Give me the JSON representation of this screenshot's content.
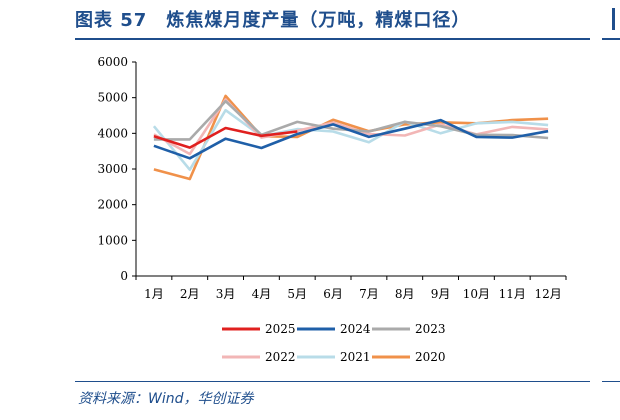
{
  "header": {
    "title": "图表 57　炼焦煤月度产量（万吨，精煤口径）"
  },
  "footer": {
    "source": "资料来源：Wind，华创证券"
  },
  "chart_data": {
    "type": "line",
    "title": "",
    "xlabel": "",
    "ylabel": "",
    "categories": [
      "1月",
      "2月",
      "3月",
      "4月",
      "5月",
      "6月",
      "7月",
      "8月",
      "9月",
      "10月",
      "11月",
      "12月"
    ],
    "ylim": [
      0,
      6000
    ],
    "yticks": [
      0,
      1000,
      2000,
      3000,
      4000,
      5000,
      6000
    ],
    "grid": false,
    "legend_position": "bottom",
    "series": [
      {
        "name": "2025",
        "color": "#e0201f",
        "values": [
          3920,
          3600,
          4150,
          3930,
          4050,
          null,
          null,
          null,
          null,
          null,
          null,
          null
        ]
      },
      {
        "name": "2024",
        "color": "#1f5fa8",
        "values": [
          3650,
          3300,
          3850,
          3590,
          3980,
          4250,
          3900,
          4130,
          4370,
          3900,
          3880,
          4060
        ]
      },
      {
        "name": "2023",
        "color": "#aaaaaa",
        "values": [
          3830,
          3830,
          4900,
          3960,
          4320,
          4130,
          4050,
          4320,
          4200,
          3960,
          3950,
          3870
        ]
      },
      {
        "name": "2022",
        "color": "#f2b6b6",
        "values": [
          3970,
          3420,
          4950,
          3880,
          4070,
          4300,
          3980,
          3940,
          4250,
          3970,
          4180,
          4110
        ]
      },
      {
        "name": "2021",
        "color": "#b8dce8",
        "values": [
          4200,
          2980,
          4650,
          3920,
          4120,
          4050,
          3750,
          4330,
          4000,
          4280,
          4320,
          4230
        ]
      },
      {
        "name": "2020",
        "color": "#f0914a",
        "values": [
          2990,
          2720,
          5050,
          3920,
          3900,
          4380,
          4060,
          4250,
          4310,
          4280,
          4370,
          4410
        ]
      }
    ]
  }
}
